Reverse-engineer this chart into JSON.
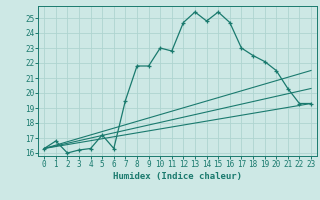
{
  "xlabel": "Humidex (Indice chaleur)",
  "background_color": "#cde8e5",
  "grid_color": "#afd4d0",
  "line_color": "#1a7a6e",
  "xlim": [
    -0.5,
    23.5
  ],
  "ylim": [
    15.8,
    25.8
  ],
  "xticks": [
    0,
    1,
    2,
    3,
    4,
    5,
    6,
    7,
    8,
    9,
    10,
    11,
    12,
    13,
    14,
    15,
    16,
    17,
    18,
    19,
    20,
    21,
    22,
    23
  ],
  "yticks": [
    16,
    17,
    18,
    19,
    20,
    21,
    22,
    23,
    24,
    25
  ],
  "main_series": {
    "x": [
      0,
      1,
      2,
      3,
      4,
      5,
      6,
      7,
      8,
      9,
      10,
      11,
      12,
      13,
      14,
      15,
      16,
      17,
      18,
      19,
      20,
      21,
      22,
      23
    ],
    "y": [
      16.3,
      16.8,
      16.0,
      16.2,
      16.3,
      17.2,
      16.3,
      19.5,
      21.8,
      21.8,
      23.0,
      22.8,
      24.7,
      25.4,
      24.8,
      25.4,
      24.7,
      23.0,
      22.5,
      22.1,
      21.5,
      20.3,
      19.3,
      19.3
    ]
  },
  "ref_lines": [
    {
      "x": [
        0,
        23
      ],
      "y": [
        16.3,
        21.5
      ]
    },
    {
      "x": [
        0,
        23
      ],
      "y": [
        16.3,
        20.3
      ]
    },
    {
      "x": [
        0,
        23
      ],
      "y": [
        16.3,
        19.3
      ]
    }
  ]
}
